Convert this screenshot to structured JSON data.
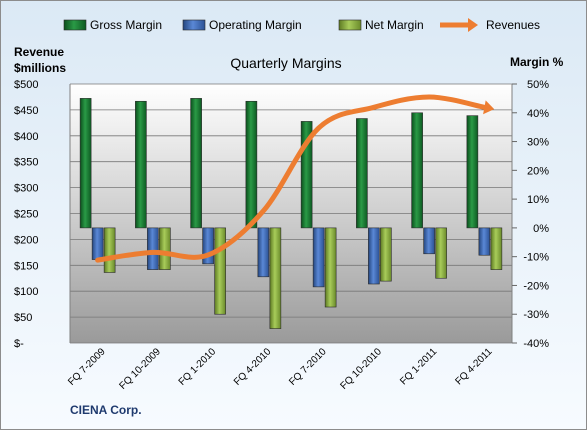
{
  "chart_data": {
    "type": "bar",
    "title": "Quarterly Margins",
    "left_axis_label_line1": "Revenue",
    "left_axis_label_line2": "$millions",
    "right_axis_label": "Margin %",
    "company": "CIENA Corp.",
    "categories": [
      "FQ 7-2009",
      "FQ 10-2009",
      "FQ 1-2010",
      "FQ 4-2010",
      "FQ 7-2010",
      "FQ 10-2010",
      "FQ 1-2011",
      "FQ 4-2011"
    ],
    "left_ticks": [
      "$-",
      "$50",
      "$100",
      "$150",
      "$200",
      "$250",
      "$300",
      "$350",
      "$400",
      "$450",
      "$500"
    ],
    "right_ticks": [
      "-40%",
      "-30%",
      "-20%",
      "-10%",
      "0%",
      "10%",
      "20%",
      "30%",
      "40%",
      "50%"
    ],
    "left_ylim": [
      0,
      500
    ],
    "right_ylim": [
      -40,
      50
    ],
    "series": [
      {
        "name": "Gross Margin",
        "axis": "right",
        "color": "#1e7a34",
        "values": [
          45,
          44,
          45,
          44,
          37,
          38,
          40,
          39
        ]
      },
      {
        "name": "Operating Margin",
        "axis": "right",
        "color": "#3b6cc0",
        "values": [
          -11,
          -14.5,
          -12.5,
          -17,
          -20.5,
          -19.5,
          -9,
          -9.5
        ]
      },
      {
        "name": "Net Margin",
        "axis": "right",
        "color": "#8caf3e",
        "values": [
          -15.5,
          -14.5,
          -30,
          -35,
          -27.5,
          -18.5,
          -17.5,
          -14.5
        ]
      },
      {
        "name": "Revenues",
        "axis": "left",
        "color": "#ed7d31",
        "type": "line",
        "values": [
          160,
          175,
          170,
          255,
          415,
          455,
          475,
          455
        ]
      }
    ],
    "legend_position": "top",
    "grid": true
  }
}
